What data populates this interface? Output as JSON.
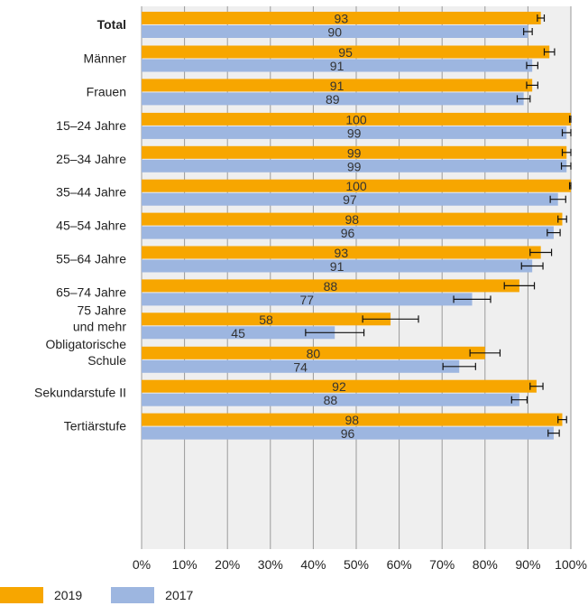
{
  "chart_data": {
    "type": "bar",
    "orientation": "horizontal",
    "categories": [
      {
        "label": "Total",
        "bold": true
      },
      {
        "label": "Männer"
      },
      {
        "label": "Frauen"
      },
      {
        "label": "15–24 Jahre"
      },
      {
        "label": "25–34 Jahre"
      },
      {
        "label": "35–44 Jahre"
      },
      {
        "label": "45–54 Jahre"
      },
      {
        "label": "55–64 Jahre"
      },
      {
        "label": "65–74 Jahre"
      },
      {
        "label": "75 Jahre und mehr",
        "lines": [
          "75 Jahre",
          "und mehr"
        ]
      },
      {
        "label": "Obligatorische Schule",
        "lines": [
          "Obligatorische",
          "Schule"
        ]
      },
      {
        "label": "Sekundarstufe II"
      },
      {
        "label": "Tertiärstufe"
      }
    ],
    "groups": [
      [
        0
      ],
      [
        1,
        2
      ],
      [
        3,
        4,
        5,
        6,
        7,
        8,
        9
      ],
      [
        10,
        11,
        12
      ]
    ],
    "series": [
      {
        "name": "2019",
        "color": "#f7a600",
        "values": [
          93,
          95,
          91,
          100,
          99,
          100,
          98,
          93,
          88,
          58,
          80,
          92,
          98
        ],
        "error": [
          0.8,
          1.2,
          1.3,
          0.3,
          1.0,
          0.3,
          1.0,
          2.5,
          3.5,
          6.5,
          3.5,
          1.5,
          1.0
        ]
      },
      {
        "name": "2017",
        "color": "#9db6e0",
        "values": [
          90,
          91,
          89,
          99,
          99,
          97,
          96,
          91,
          77,
          45,
          74,
          88,
          96
        ],
        "error": [
          1.0,
          1.3,
          1.5,
          1.0,
          1.2,
          1.8,
          1.5,
          2.5,
          4.3,
          6.8,
          3.8,
          1.8,
          1.3
        ]
      }
    ],
    "xlim": [
      0,
      100
    ],
    "xticks": [
      "0%",
      "10%",
      "20%",
      "30%",
      "40%",
      "50%",
      "60%",
      "70%",
      "80%",
      "90%",
      "100%"
    ],
    "grid": true,
    "legend_position": "bottom-left",
    "plot_background": "#efefef"
  }
}
